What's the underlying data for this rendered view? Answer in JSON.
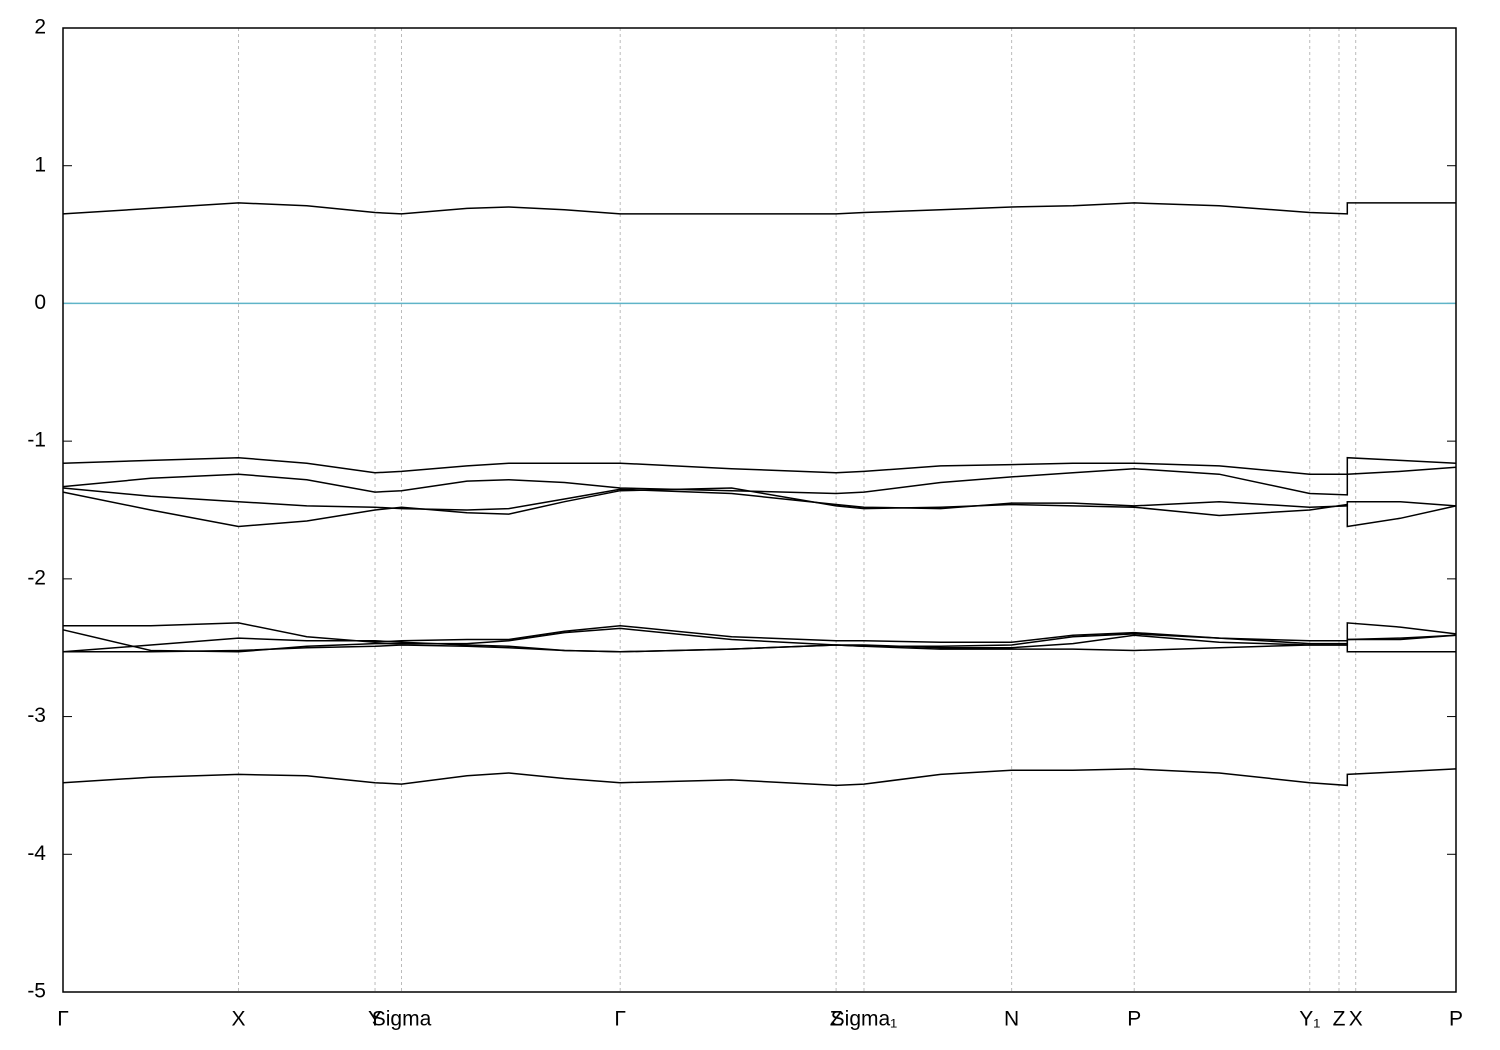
{
  "chart_data": {
    "type": "line",
    "x": [
      0,
      0.063,
      0.126,
      0.175,
      0.224,
      0.243,
      0.29,
      0.32,
      0.36,
      0.4,
      0.48,
      0.555,
      0.575,
      0.63,
      0.681,
      0.725,
      0.769,
      0.83,
      0.895,
      0.922,
      0.922,
      0.96,
      1.0
    ],
    "xlim": [
      0,
      1
    ],
    "xticks": [
      {
        "value": 0,
        "label": "Γ"
      },
      {
        "value": 0.126,
        "label": "X"
      },
      {
        "value": 0.224,
        "label": "Y"
      },
      {
        "value": 0.243,
        "label": "Sigma"
      },
      {
        "value": 0.4,
        "label": "Γ"
      },
      {
        "value": 0.555,
        "label": "Z"
      },
      {
        "value": 0.575,
        "label": "Sigma₁"
      },
      {
        "value": 0.681,
        "label": "N"
      },
      {
        "value": 0.769,
        "label": "P"
      },
      {
        "value": 0.895,
        "label": "Y₁"
      },
      {
        "value": 0.916,
        "label": "Z"
      },
      {
        "value": 0.928,
        "label": "X"
      },
      {
        "value": 1.0,
        "label": "P"
      }
    ],
    "ylim": [
      -5,
      2
    ],
    "yticks": [
      -5,
      -4,
      -3,
      -2,
      -1,
      0,
      1,
      2
    ],
    "xgrid": true,
    "grid_color": "#bbbbbb",
    "hline": {
      "value": 0,
      "color": "#5fb4c8"
    },
    "series": [
      {
        "color": "#000000",
        "values": [
          0.65,
          0.69,
          0.73,
          0.71,
          0.66,
          0.65,
          0.69,
          0.7,
          0.68,
          0.65,
          0.65,
          0.65,
          0.66,
          0.68,
          0.7,
          0.71,
          0.73,
          0.71,
          0.66,
          0.65,
          0.73,
          0.73,
          0.73
        ]
      },
      {
        "color": "#000000",
        "values": [
          -1.16,
          -1.14,
          -1.12,
          -1.16,
          -1.23,
          -1.22,
          -1.18,
          -1.16,
          -1.16,
          -1.16,
          -1.2,
          -1.23,
          -1.22,
          -1.18,
          -1.17,
          -1.16,
          -1.16,
          -1.18,
          -1.24,
          -1.24,
          -1.12,
          -1.14,
          -1.16
        ]
      },
      {
        "color": "#000000",
        "values": [
          -1.33,
          -1.27,
          -1.24,
          -1.28,
          -1.37,
          -1.36,
          -1.29,
          -1.28,
          -1.3,
          -1.34,
          -1.36,
          -1.38,
          -1.37,
          -1.3,
          -1.26,
          -1.23,
          -1.2,
          -1.24,
          -1.38,
          -1.39,
          -1.24,
          -1.22,
          -1.19
        ]
      },
      {
        "color": "#000000",
        "values": [
          -1.34,
          -1.4,
          -1.44,
          -1.47,
          -1.48,
          -1.49,
          -1.5,
          -1.49,
          -1.42,
          -1.35,
          -1.38,
          -1.46,
          -1.48,
          -1.49,
          -1.45,
          -1.45,
          -1.47,
          -1.44,
          -1.48,
          -1.47,
          -1.44,
          -1.44,
          -1.47
        ]
      },
      {
        "color": "#000000",
        "values": [
          -1.37,
          -1.5,
          -1.62,
          -1.58,
          -1.5,
          -1.48,
          -1.52,
          -1.53,
          -1.44,
          -1.36,
          -1.34,
          -1.47,
          -1.49,
          -1.48,
          -1.46,
          -1.47,
          -1.48,
          -1.54,
          -1.5,
          -1.46,
          -1.62,
          -1.56,
          -1.47
        ]
      },
      {
        "color": "#000000",
        "values": [
          -2.34,
          -2.34,
          -2.32,
          -2.42,
          -2.46,
          -2.45,
          -2.44,
          -2.44,
          -2.38,
          -2.34,
          -2.42,
          -2.45,
          -2.45,
          -2.46,
          -2.46,
          -2.41,
          -2.39,
          -2.43,
          -2.45,
          -2.45,
          -2.32,
          -2.35,
          -2.4
        ]
      },
      {
        "color": "#000000",
        "values": [
          -2.37,
          -2.52,
          -2.53,
          -2.49,
          -2.47,
          -2.47,
          -2.47,
          -2.45,
          -2.39,
          -2.36,
          -2.44,
          -2.48,
          -2.49,
          -2.49,
          -2.48,
          -2.42,
          -2.4,
          -2.43,
          -2.47,
          -2.47,
          -2.44,
          -2.43,
          -2.41
        ]
      },
      {
        "color": "#000000",
        "values": [
          -2.53,
          -2.48,
          -2.43,
          -2.45,
          -2.45,
          -2.46,
          -2.48,
          -2.49,
          -2.52,
          -2.53,
          -2.51,
          -2.48,
          -2.48,
          -2.5,
          -2.5,
          -2.47,
          -2.41,
          -2.46,
          -2.48,
          -2.48,
          -2.44,
          -2.44,
          -2.41
        ]
      },
      {
        "color": "#000000",
        "values": [
          -2.53,
          -2.53,
          -2.52,
          -2.5,
          -2.49,
          -2.48,
          -2.49,
          -2.5,
          -2.52,
          -2.53,
          -2.51,
          -2.48,
          -2.49,
          -2.51,
          -2.51,
          -2.51,
          -2.52,
          -2.5,
          -2.48,
          -2.48,
          -2.53,
          -2.53,
          -2.53
        ]
      },
      {
        "color": "#000000",
        "values": [
          -3.48,
          -3.44,
          -3.42,
          -3.43,
          -3.48,
          -3.49,
          -3.43,
          -3.41,
          -3.45,
          -3.48,
          -3.46,
          -3.5,
          -3.49,
          -3.42,
          -3.39,
          -3.39,
          -3.38,
          -3.41,
          -3.48,
          -3.5,
          -3.42,
          -3.4,
          -3.38
        ]
      }
    ]
  }
}
